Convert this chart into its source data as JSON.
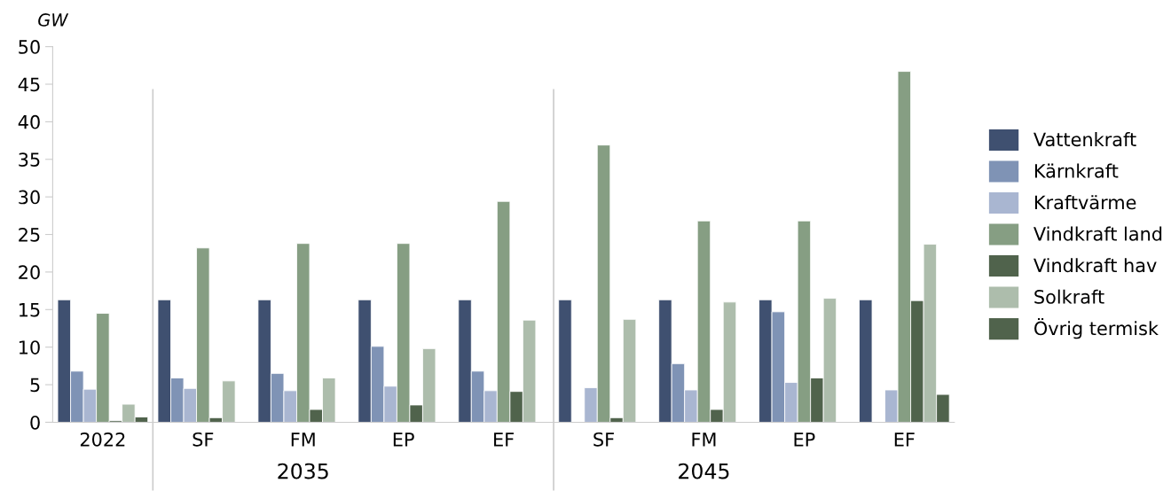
{
  "chart_data": {
    "type": "bar",
    "ylabel": "GW",
    "categories": [
      "2022",
      "SF",
      "FM",
      "EP",
      "EF",
      "SF",
      "FM",
      "EP",
      "EF"
    ],
    "annotations": [
      "2035",
      "2045"
    ],
    "ylim": [
      0,
      50
    ],
    "yticks": [
      0,
      5,
      10,
      15,
      20,
      25,
      30,
      35,
      40,
      45,
      50
    ],
    "grid": false,
    "legend": "right",
    "series": [
      {
        "name": "Vattenkraft",
        "color": "#3f5070",
        "values": [
          16.3,
          16.3,
          16.3,
          16.3,
          16.3,
          16.3,
          16.3,
          16.3,
          16.3
        ]
      },
      {
        "name": "Kärnkraft",
        "color": "#7f93b5",
        "values": [
          6.8,
          5.9,
          6.5,
          10.1,
          6.8,
          null,
          7.8,
          14.7,
          null
        ]
      },
      {
        "name": "Kraftvärme",
        "color": "#a9b6d1",
        "values": [
          4.4,
          4.5,
          4.2,
          4.8,
          4.2,
          4.6,
          4.3,
          5.3,
          4.3
        ]
      },
      {
        "name": "Vindkraft land",
        "color": "#869e83",
        "values": [
          14.5,
          23.2,
          23.8,
          23.8,
          29.4,
          36.9,
          26.8,
          26.8,
          46.7
        ]
      },
      {
        "name": "Vindkraft hav",
        "color": "#50634c",
        "values": [
          0.2,
          0.6,
          1.7,
          2.3,
          4.1,
          0.6,
          1.7,
          5.9,
          16.2
        ]
      },
      {
        "name": "Solkraft",
        "color": "#adbdac",
        "values": [
          2.4,
          5.5,
          5.9,
          9.8,
          13.6,
          13.7,
          16.0,
          16.5,
          23.7
        ]
      },
      {
        "name": "Övrig termisk",
        "color": "#50634c",
        "values": [
          0.7,
          null,
          null,
          null,
          null,
          null,
          null,
          null,
          3.7
        ]
      }
    ]
  }
}
